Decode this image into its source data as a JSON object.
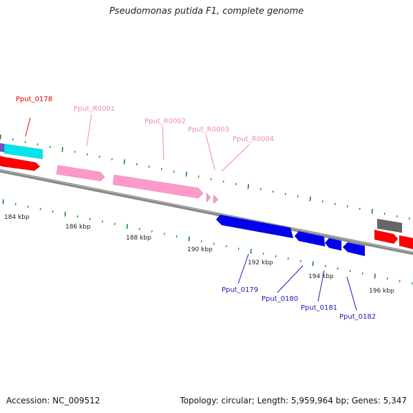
{
  "title": "Pseudomonas putida F1, complete genome",
  "accession_label": "Accession: NC_009512",
  "summary_label": "Topology: circular; Length: 5,959,964 bp; Genes: 5,347",
  "colors": {
    "backbone": "#888888",
    "tick": "#0b8a0b",
    "tick_label": "#222222",
    "forward_cds": "#ff0000",
    "reverse_cds": "#0000ee",
    "rna": "#ff99cc",
    "cyan_feature": "#00e6ea",
    "gray_feature": "#666666",
    "purple_feature": "#7a52c8",
    "label_forward": "#dd0000",
    "label_rna": "#ee88bb",
    "label_reverse": "#1a1ab0"
  },
  "scale": {
    "ticks": [
      {
        "label": "184 kbp"
      },
      {
        "label": "186 kbp"
      },
      {
        "label": "188 kbp"
      },
      {
        "label": "190 kbp"
      },
      {
        "label": "192 kbp"
      },
      {
        "label": "194 kbp"
      },
      {
        "label": "196 kbp"
      }
    ]
  },
  "features": [
    {
      "name": "Pput_0178",
      "kind": "forward",
      "label": "Pput_0178"
    },
    {
      "name": "Pput_R0001",
      "kind": "rna",
      "label": "Pput_R0001"
    },
    {
      "name": "Pput_R0002",
      "kind": "rna",
      "label": "Pput_R0002"
    },
    {
      "name": "Pput_R0003",
      "kind": "rna",
      "label": "Pput_R0003"
    },
    {
      "name": "Pput_R0004",
      "kind": "rna",
      "label": "Pput_R0004"
    },
    {
      "name": "Pput_0179",
      "kind": "reverse",
      "label": "Pput_0179"
    },
    {
      "name": "Pput_0180",
      "kind": "reverse",
      "label": "Pput_0180"
    },
    {
      "name": "Pput_0181",
      "kind": "reverse",
      "label": "Pput_0181"
    },
    {
      "name": "Pput_0182",
      "kind": "reverse",
      "label": "Pput_0182"
    }
  ]
}
